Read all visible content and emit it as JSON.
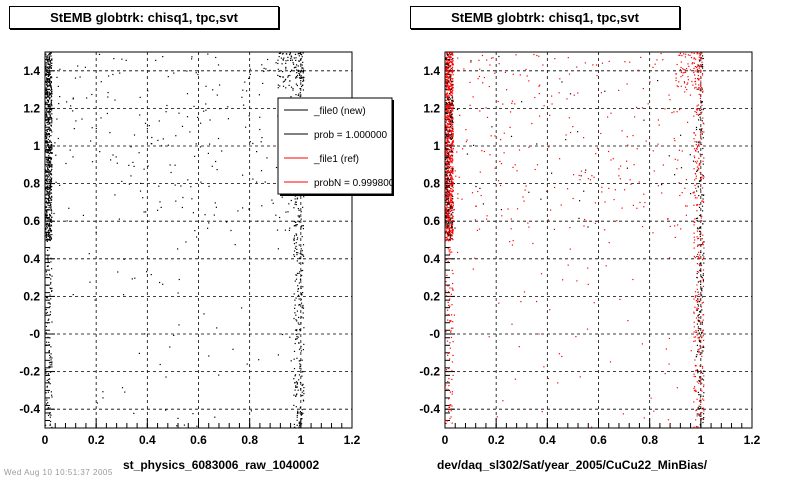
{
  "chart_data": [
    {
      "type": "scatter",
      "title": "StEMB globtrk: chisq1, tpc,svt",
      "xlabel": "st_physics_6083006_raw_1040002",
      "ylabel": "",
      "xlim": [
        0,
        1.2
      ],
      "ylim": [
        -0.5,
        1.5
      ],
      "x_ticks": [
        "0",
        "0.2",
        "0.4",
        "0.6",
        "0.8",
        "1",
        "1.2"
      ],
      "y_ticks": [
        "-0.4",
        "-0.2",
        "-0",
        "0.2",
        "0.4",
        "0.6",
        "0.8",
        "1",
        "1.2",
        "1.4"
      ],
      "grid": true,
      "series": [
        {
          "name": "_file0 (new)",
          "color": "#000000",
          "bands": [
            {
              "x": [
                0.0,
                0.025
              ],
              "y": [
                0.5,
                1.5
              ],
              "count": 650
            },
            {
              "x": [
                0.0,
                0.025
              ],
              "y": [
                -0.5,
                0.5
              ],
              "count": 110
            },
            {
              "x": [
                0.97,
                1.01
              ],
              "y": [
                -0.5,
                1.5
              ],
              "count": 380
            },
            {
              "x": [
                0.9,
                1.01
              ],
              "y": [
                1.3,
                1.5
              ],
              "count": 80
            },
            {
              "x": [
                0.02,
                0.98
              ],
              "y": [
                0.55,
                1.5
              ],
              "count": 230
            },
            {
              "x": [
                0.02,
                0.98
              ],
              "y": [
                -0.5,
                0.55
              ],
              "count": 55
            }
          ]
        }
      ],
      "legend": {
        "placement": "top-right",
        "entries": [
          {
            "label": "_file0 (new)",
            "color": "#000000"
          },
          {
            "label": "prob = 1.000000",
            "color": "#000000"
          },
          {
            "label": "_file1 (ref)",
            "color": "#ff0000"
          },
          {
            "label": "probN = 0.999800",
            "color": "#ff0000"
          }
        ]
      }
    },
    {
      "type": "scatter",
      "title": "StEMB globtrk: chisq1, tpc,svt",
      "xlabel": "dev/daq_sl302/Sat/year_2005/CuCu22_MinBias/",
      "ylabel": "",
      "xlim": [
        0,
        1.2
      ],
      "ylim": [
        -0.5,
        1.5
      ],
      "x_ticks": [
        "0",
        "0.2",
        "0.4",
        "0.6",
        "0.8",
        "1",
        "1.2"
      ],
      "y_ticks": [
        "-0.4",
        "-0.2",
        "-0",
        "0.2",
        "0.4",
        "0.6",
        "0.8",
        "1",
        "1.2",
        "1.4"
      ],
      "grid": true,
      "series": [
        {
          "name": "_file1 (ref)",
          "color": "#ff0000",
          "bands": [
            {
              "x": [
                0.0,
                0.03
              ],
              "y": [
                0.5,
                1.5
              ],
              "count": 900
            },
            {
              "x": [
                0.0,
                0.03
              ],
              "y": [
                -0.5,
                0.5
              ],
              "count": 90
            },
            {
              "x": [
                0.97,
                1.01
              ],
              "y": [
                -0.5,
                1.5
              ],
              "count": 320
            },
            {
              "x": [
                0.9,
                1.01
              ],
              "y": [
                1.3,
                1.5
              ],
              "count": 70
            },
            {
              "x": [
                0.02,
                0.98
              ],
              "y": [
                0.55,
                1.5
              ],
              "count": 260
            },
            {
              "x": [
                0.02,
                0.98
              ],
              "y": [
                -0.5,
                0.55
              ],
              "count": 60
            }
          ]
        },
        {
          "name": "_file0 (new)",
          "color": "#000000",
          "bands": [
            {
              "x": [
                0.0,
                0.03
              ],
              "y": [
                0.5,
                1.5
              ],
              "count": 180
            },
            {
              "x": [
                0.98,
                1.01
              ],
              "y": [
                -0.5,
                1.5
              ],
              "count": 160
            },
            {
              "x": [
                0.02,
                0.98
              ],
              "y": [
                0.55,
                1.5
              ],
              "count": 40
            }
          ]
        }
      ]
    }
  ],
  "footer": "Wed Aug 10 10:51:37 2005"
}
